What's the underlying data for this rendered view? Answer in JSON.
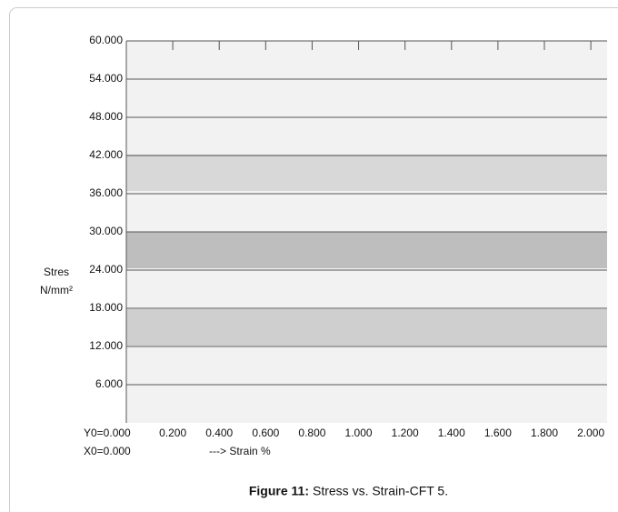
{
  "chart_data": {
    "type": "line",
    "figure_label": "Figure 11:",
    "title": "Stress vs. Strain-CFT 5.",
    "y_label_line1": "Stres",
    "y_label_line2": "N/mm²",
    "x_label": "---> Strain %",
    "y_origin_label": "Y0=0.000",
    "x_origin_label": "X0=0.000",
    "xlim": [
      0,
      2.07
    ],
    "ylim": [
      0,
      60
    ],
    "xticks": [
      {
        "value": 0.2,
        "label": "0.200"
      },
      {
        "value": 0.4,
        "label": "0.400"
      },
      {
        "value": 0.6,
        "label": "0.600"
      },
      {
        "value": 0.8,
        "label": "0.800"
      },
      {
        "value": 1.0,
        "label": "1.000"
      },
      {
        "value": 1.2,
        "label": "1.200"
      },
      {
        "value": 1.4,
        "label": "1.400"
      },
      {
        "value": 1.6,
        "label": "1.600"
      },
      {
        "value": 1.8,
        "label": "1.800"
      },
      {
        "value": 2.0,
        "label": "2.000"
      }
    ],
    "yticks": [
      {
        "value": 6,
        "label": "6.000"
      },
      {
        "value": 12,
        "label": "12.000"
      },
      {
        "value": 18,
        "label": "18.000"
      },
      {
        "value": 24,
        "label": "24.000"
      },
      {
        "value": 30,
        "label": "30.000"
      },
      {
        "value": 36,
        "label": "36.000"
      },
      {
        "value": 42,
        "label": "42.000"
      },
      {
        "value": 48,
        "label": "48.000"
      },
      {
        "value": 54,
        "label": "54.000"
      },
      {
        "value": 60,
        "label": "60.000"
      }
    ],
    "grid": true
  }
}
